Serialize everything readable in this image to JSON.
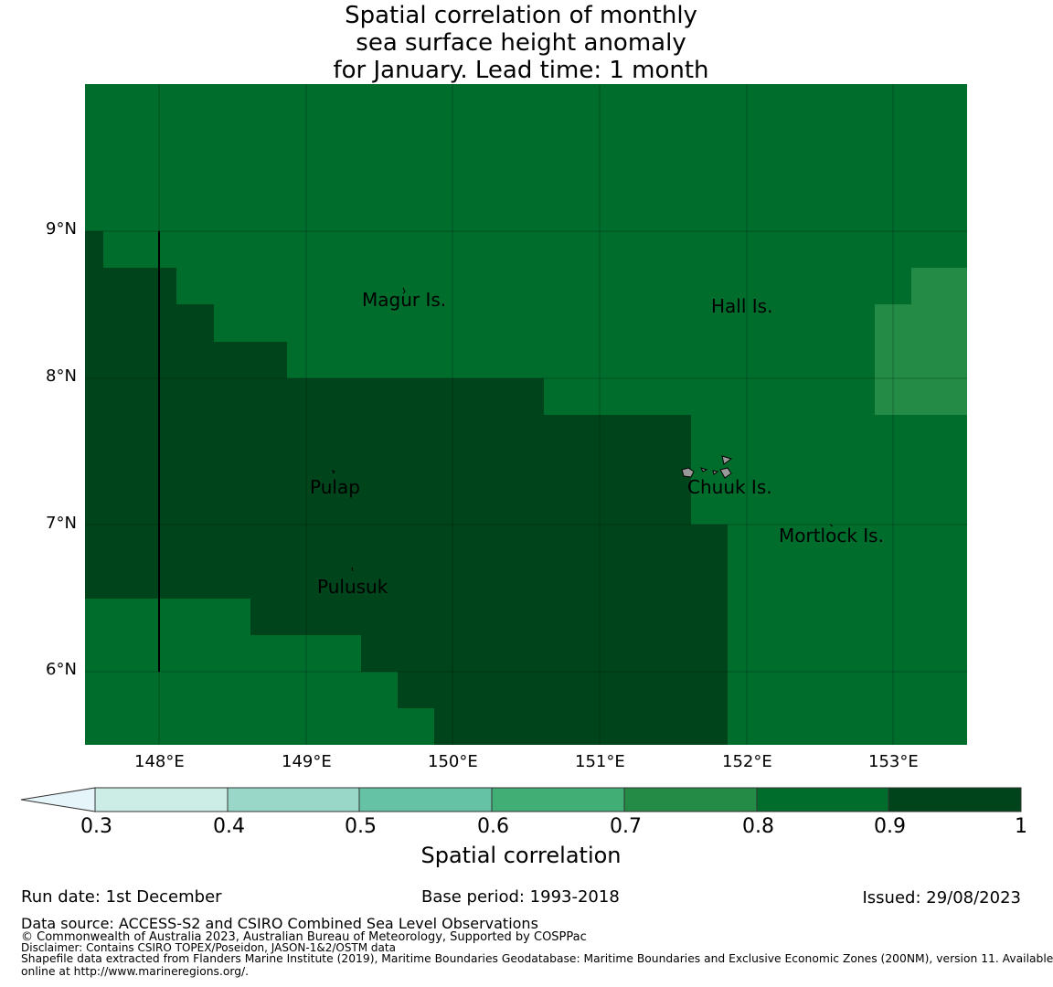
{
  "title": {
    "line1": "Spatial correlation of monthly",
    "line2": "sea surface height anomaly",
    "line3": "for January. Lead time: 1 month"
  },
  "map": {
    "lat_labels": [
      "9°N",
      "8°N",
      "7°N",
      "6°N"
    ],
    "lon_labels": [
      "148°E",
      "149°E",
      "150°E",
      "151°E",
      "152°E",
      "153°E"
    ],
    "places": [
      {
        "name": "Magur Is."
      },
      {
        "name": "Hall Is."
      },
      {
        "name": "Pulap"
      },
      {
        "name": "Chuuk Is."
      },
      {
        "name": "Mortlock Is."
      },
      {
        "name": "Pulusuk"
      }
    ]
  },
  "colorbar": {
    "ticks": [
      "0.3",
      "0.4",
      "0.5",
      "0.6",
      "0.7",
      "0.8",
      "0.9",
      "1"
    ],
    "label": "Spatial correlation",
    "colors": {
      "below": "#e5f5f9",
      "c03_04": "#ccece6",
      "c04_05": "#99d8c9",
      "c05_06": "#66c2a4",
      "c06_07": "#41ae76",
      "c07_08": "#238b45",
      "c08_09": "#006d2c",
      "c09_10": "#00441b"
    }
  },
  "footer": {
    "run_date": "Run date: 1st December",
    "base_period": "Base period: 1993-2018",
    "issued": "Issued: 29/08/2023",
    "data_source": "Data source: ACCESS-S2 and CSIRO Combined Sea Level Observations",
    "copyright": "© Commonwealth of Australia 2023, Australian Bureau of Meteorology, Supported by COSPPac",
    "disclaimer": "Disclaimer: Contains CSIRO TOPEX/Poseidon, JASON-1&2/OSTM data",
    "shapefile1": "Shapefile data extracted from Flanders Marine Institute (2019), Maritime Boundaries Geodatabase: Maritime Boundaries and Exclusive Economic Zones (200NM), version 11. Available",
    "shapefile2": "online at http://www.marineregions.org/."
  }
}
